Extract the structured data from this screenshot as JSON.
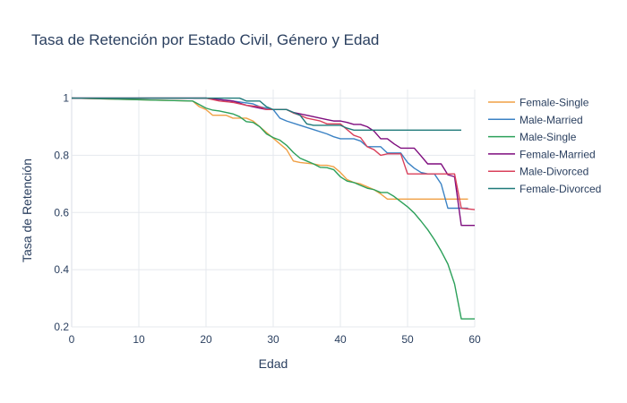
{
  "chart_data": {
    "type": "line",
    "title": "Tasa de Retención por Estado Civil, Género y Edad",
    "xlabel": "Edad",
    "ylabel": "Tasa de Retención",
    "xlim": [
      0,
      60
    ],
    "ylim": [
      0.2,
      1.03
    ],
    "xticks": [
      0,
      10,
      20,
      30,
      40,
      50,
      60
    ],
    "yticks": [
      0.2,
      0.4,
      0.6,
      0.8,
      1
    ],
    "ytick_labels": [
      "0.2",
      "0.4",
      "0.6",
      "0.8",
      "1"
    ],
    "grid": true,
    "legend_position": "right",
    "series": [
      {
        "name": "Female-Single",
        "color": "#f0a045",
        "points": [
          [
            0,
            1.0
          ],
          [
            18,
            0.99
          ],
          [
            19,
            0.97
          ],
          [
            20,
            0.96
          ],
          [
            21,
            0.94
          ],
          [
            23,
            0.94
          ],
          [
            24,
            0.93
          ],
          [
            26,
            0.93
          ],
          [
            27,
            0.92
          ],
          [
            28,
            0.9
          ],
          [
            29,
            0.88
          ],
          [
            30,
            0.86
          ],
          [
            31,
            0.84
          ],
          [
            32,
            0.82
          ],
          [
            33,
            0.78
          ],
          [
            34,
            0.775
          ],
          [
            36,
            0.77
          ],
          [
            37,
            0.765
          ],
          [
            38,
            0.765
          ],
          [
            39,
            0.76
          ],
          [
            40,
            0.74
          ],
          [
            41,
            0.715
          ],
          [
            42,
            0.705
          ],
          [
            43,
            0.7
          ],
          [
            44,
            0.69
          ],
          [
            45,
            0.68
          ],
          [
            46,
            0.665
          ],
          [
            47,
            0.647
          ],
          [
            50,
            0.647
          ],
          [
            55,
            0.647
          ],
          [
            59,
            0.647
          ]
        ]
      },
      {
        "name": "Male-Married",
        "color": "#3b82c4",
        "points": [
          [
            0,
            1.0
          ],
          [
            20,
            1.0
          ],
          [
            24,
            0.99
          ],
          [
            27,
            0.98
          ],
          [
            28,
            0.97
          ],
          [
            30,
            0.96
          ],
          [
            31,
            0.93
          ],
          [
            32,
            0.92
          ],
          [
            34,
            0.905
          ],
          [
            36,
            0.89
          ],
          [
            38,
            0.875
          ],
          [
            39,
            0.865
          ],
          [
            40,
            0.858
          ],
          [
            42,
            0.858
          ],
          [
            43,
            0.85
          ],
          [
            44,
            0.83
          ],
          [
            45,
            0.83
          ],
          [
            46,
            0.83
          ],
          [
            47,
            0.808
          ],
          [
            48,
            0.808
          ],
          [
            49,
            0.808
          ],
          [
            50,
            0.775
          ],
          [
            51,
            0.755
          ],
          [
            52,
            0.74
          ],
          [
            53,
            0.735
          ],
          [
            54,
            0.735
          ],
          [
            55,
            0.7
          ],
          [
            56,
            0.615
          ],
          [
            58,
            0.615
          ],
          [
            59,
            0.615
          ]
        ]
      },
      {
        "name": "Male-Single",
        "color": "#2ca05a",
        "points": [
          [
            0,
            1.0
          ],
          [
            18,
            0.99
          ],
          [
            20,
            0.965
          ],
          [
            21,
            0.958
          ],
          [
            22,
            0.955
          ],
          [
            23,
            0.95
          ],
          [
            24,
            0.945
          ],
          [
            25,
            0.935
          ],
          [
            26,
            0.918
          ],
          [
            27,
            0.915
          ],
          [
            28,
            0.9
          ],
          [
            29,
            0.875
          ],
          [
            30,
            0.862
          ],
          [
            31,
            0.853
          ],
          [
            32,
            0.835
          ],
          [
            33,
            0.81
          ],
          [
            34,
            0.79
          ],
          [
            35,
            0.78
          ],
          [
            36,
            0.77
          ],
          [
            37,
            0.758
          ],
          [
            38,
            0.757
          ],
          [
            39,
            0.75
          ],
          [
            40,
            0.725
          ],
          [
            41,
            0.71
          ],
          [
            42,
            0.705
          ],
          [
            43,
            0.695
          ],
          [
            44,
            0.685
          ],
          [
            45,
            0.68
          ],
          [
            46,
            0.67
          ],
          [
            47,
            0.67
          ],
          [
            48,
            0.656
          ],
          [
            49,
            0.638
          ],
          [
            50,
            0.62
          ],
          [
            51,
            0.598
          ],
          [
            52,
            0.57
          ],
          [
            53,
            0.54
          ],
          [
            54,
            0.505
          ],
          [
            55,
            0.465
          ],
          [
            56,
            0.42
          ],
          [
            57,
            0.35
          ],
          [
            58,
            0.228
          ],
          [
            59,
            0.228
          ],
          [
            60,
            0.228
          ]
        ]
      },
      {
        "name": "Female-Married",
        "color": "#7e0c7e",
        "points": [
          [
            0,
            1.0
          ],
          [
            20,
            1.0
          ],
          [
            22,
            0.995
          ],
          [
            24,
            0.99
          ],
          [
            26,
            0.975
          ],
          [
            27,
            0.97
          ],
          [
            29,
            0.96
          ],
          [
            32,
            0.96
          ],
          [
            33,
            0.95
          ],
          [
            35,
            0.94
          ],
          [
            36,
            0.935
          ],
          [
            37,
            0.93
          ],
          [
            38,
            0.925
          ],
          [
            39,
            0.92
          ],
          [
            40,
            0.92
          ],
          [
            41,
            0.915
          ],
          [
            42,
            0.908
          ],
          [
            43,
            0.908
          ],
          [
            44,
            0.9
          ],
          [
            45,
            0.885
          ],
          [
            46,
            0.858
          ],
          [
            47,
            0.858
          ],
          [
            48,
            0.84
          ],
          [
            49,
            0.825
          ],
          [
            51,
            0.825
          ],
          [
            52,
            0.798
          ],
          [
            53,
            0.77
          ],
          [
            55,
            0.77
          ],
          [
            56,
            0.732
          ],
          [
            57,
            0.725
          ],
          [
            58,
            0.555
          ],
          [
            59,
            0.555
          ],
          [
            60,
            0.555
          ]
        ]
      },
      {
        "name": "Male-Divorced",
        "color": "#d9405b",
        "points": [
          [
            0,
            1.0
          ],
          [
            20,
            1.0
          ],
          [
            22,
            0.99
          ],
          [
            24,
            0.985
          ],
          [
            26,
            0.975
          ],
          [
            28,
            0.97
          ],
          [
            29,
            0.96
          ],
          [
            32,
            0.96
          ],
          [
            33,
            0.948
          ],
          [
            34,
            0.94
          ],
          [
            35,
            0.93
          ],
          [
            37,
            0.92
          ],
          [
            38,
            0.91
          ],
          [
            40,
            0.91
          ],
          [
            41,
            0.89
          ],
          [
            42,
            0.87
          ],
          [
            43,
            0.862
          ],
          [
            44,
            0.83
          ],
          [
            45,
            0.82
          ],
          [
            46,
            0.8
          ],
          [
            47,
            0.805
          ],
          [
            49,
            0.805
          ],
          [
            50,
            0.735
          ],
          [
            53,
            0.735
          ],
          [
            54,
            0.735
          ],
          [
            55,
            0.735
          ],
          [
            57,
            0.735
          ],
          [
            58,
            0.615
          ],
          [
            60,
            0.61
          ]
        ]
      },
      {
        "name": "Female-Divorced",
        "color": "#1f7a7a",
        "points": [
          [
            0,
            1.0
          ],
          [
            20,
            1.0
          ],
          [
            25,
            1.0
          ],
          [
            26,
            0.99
          ],
          [
            28,
            0.99
          ],
          [
            29,
            0.97
          ],
          [
            30,
            0.96
          ],
          [
            32,
            0.96
          ],
          [
            34,
            0.94
          ],
          [
            35,
            0.91
          ],
          [
            36,
            0.905
          ],
          [
            38,
            0.905
          ],
          [
            39,
            0.905
          ],
          [
            40,
            0.905
          ],
          [
            41,
            0.895
          ],
          [
            42,
            0.888
          ],
          [
            43,
            0.888
          ],
          [
            45,
            0.888
          ],
          [
            50,
            0.888
          ],
          [
            55,
            0.888
          ],
          [
            58,
            0.888
          ]
        ]
      }
    ]
  }
}
